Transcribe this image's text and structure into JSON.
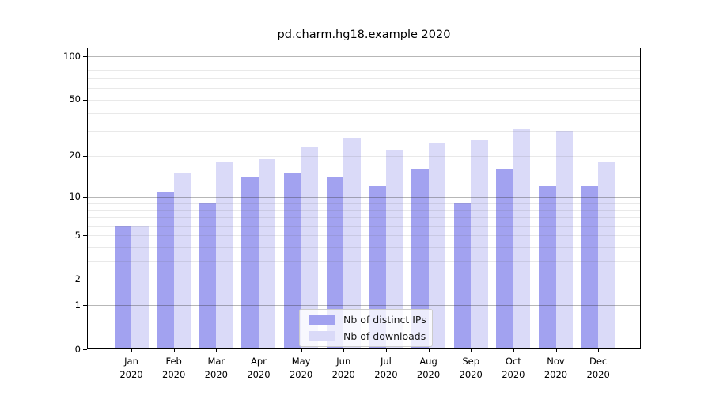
{
  "title": "pd.charm.hg18.example 2020",
  "chart_data": {
    "type": "bar",
    "categories": [
      "Jan",
      "Feb",
      "Mar",
      "Apr",
      "May",
      "Jun",
      "Jul",
      "Aug",
      "Sep",
      "Oct",
      "Nov",
      "Dec"
    ],
    "year": "2020",
    "series": [
      {
        "name": "Nb of distinct IPs",
        "color": "#a2a2f0",
        "values": [
          6,
          11,
          9,
          14,
          15,
          14,
          12,
          16,
          9,
          16,
          12,
          12
        ]
      },
      {
        "name": "Nb of downloads",
        "color": "#dadaf8",
        "values": [
          6,
          15,
          18,
          19,
          23,
          27,
          22,
          25,
          26,
          31,
          30,
          18
        ]
      }
    ],
    "yscale": "log1p",
    "ylim": [
      0,
      115
    ],
    "yticks": [
      100,
      50,
      20,
      10,
      5,
      2,
      1,
      0
    ],
    "major_gridlines": [
      1,
      10,
      100
    ],
    "minor_gridlines": [
      2,
      3,
      4,
      5,
      6,
      7,
      8,
      9,
      20,
      30,
      40,
      50,
      60,
      70,
      80,
      90
    ],
    "grid": "on",
    "legend_position": "lower center",
    "xlabel": "",
    "ylabel": ""
  },
  "colors": {
    "background": "#ffffff",
    "axis": "#000000",
    "major_grid": "#b7b7b7",
    "minor_grid": "#e9e9e9",
    "bar_ips": "#a2a2f0",
    "bar_downloads": "#dadaf8"
  }
}
